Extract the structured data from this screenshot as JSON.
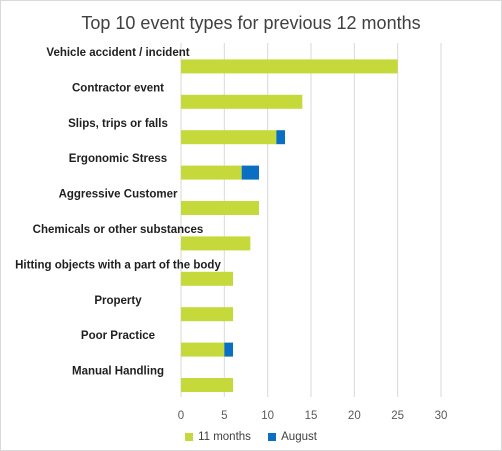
{
  "chart_data": {
    "type": "bar",
    "orientation": "horizontal",
    "stacked": true,
    "title": "Top 10 event types for previous 12 months",
    "categories": [
      "Vehicle accident / incident",
      "Contractor event",
      "Slips, trips or falls",
      "Ergonomic Stress",
      "Aggressive Customer",
      "Chemicals or other substances",
      "Hitting objects with a part of the body",
      "Property",
      "Poor Practice",
      "Manual Handling"
    ],
    "series": [
      {
        "name": "11 months",
        "color": "#c5d93b",
        "values": [
          25,
          14,
          11,
          7,
          9,
          8,
          6,
          6,
          5,
          6
        ]
      },
      {
        "name": "August",
        "color": "#0a6fc2",
        "values": [
          0,
          0,
          1,
          2,
          0,
          0,
          0,
          0,
          1,
          0
        ]
      }
    ],
    "xticks": [
      0,
      5,
      10,
      15,
      20,
      25,
      30
    ],
    "xlim": [
      0,
      30
    ],
    "grid": true,
    "legend_position": "bottom"
  }
}
